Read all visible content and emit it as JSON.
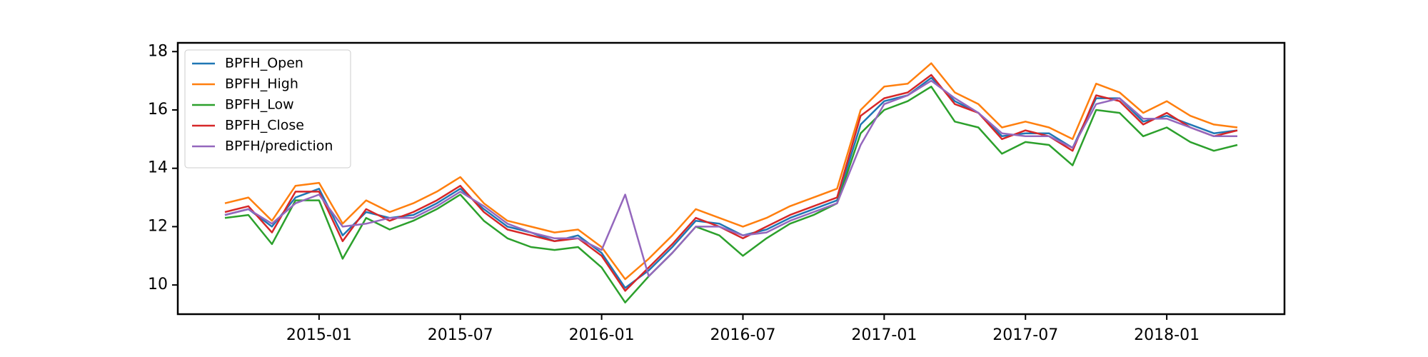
{
  "chart_data": {
    "type": "line",
    "x": [
      "2014-09",
      "2014-10",
      "2014-11",
      "2014-12",
      "2015-01",
      "2015-02",
      "2015-03",
      "2015-04",
      "2015-05",
      "2015-06",
      "2015-07",
      "2015-08",
      "2015-09",
      "2015-10",
      "2015-11",
      "2015-12",
      "2016-01",
      "2016-02",
      "2016-03",
      "2016-04",
      "2016-05",
      "2016-06",
      "2016-07",
      "2016-08",
      "2016-09",
      "2016-10",
      "2016-11",
      "2016-12",
      "2017-01",
      "2017-02",
      "2017-03",
      "2017-04",
      "2017-05",
      "2017-06",
      "2017-07",
      "2017-08",
      "2017-09",
      "2017-10",
      "2017-11",
      "2017-12",
      "2018-01",
      "2018-02",
      "2018-03",
      "2018-04"
    ],
    "series": [
      {
        "name": "BPFH_Open",
        "color": "#1f77b4",
        "values": [
          12.4,
          12.6,
          12.0,
          13.0,
          13.3,
          11.7,
          12.5,
          12.3,
          12.4,
          12.8,
          13.3,
          12.6,
          12.0,
          11.8,
          11.5,
          11.7,
          11.1,
          9.9,
          10.5,
          11.3,
          12.2,
          12.1,
          11.7,
          11.9,
          12.3,
          12.6,
          12.9,
          15.5,
          16.3,
          16.5,
          17.1,
          16.3,
          15.9,
          15.1,
          15.2,
          15.2,
          14.7,
          16.4,
          16.4,
          15.6,
          15.8,
          15.5,
          15.2,
          15.3
        ]
      },
      {
        "name": "BPFH_High",
        "color": "#ff7f0e",
        "values": [
          12.8,
          13.0,
          12.2,
          13.4,
          13.5,
          12.1,
          12.9,
          12.5,
          12.8,
          13.2,
          13.7,
          12.8,
          12.2,
          12.0,
          11.8,
          11.9,
          11.3,
          10.2,
          10.9,
          11.7,
          12.6,
          12.3,
          12.0,
          12.3,
          12.7,
          13.0,
          13.3,
          16.0,
          16.8,
          16.9,
          17.6,
          16.6,
          16.2,
          15.4,
          15.6,
          15.4,
          15.0,
          16.9,
          16.6,
          15.9,
          16.3,
          15.8,
          15.5,
          15.4
        ]
      },
      {
        "name": "BPFH_Low",
        "color": "#2ca02c",
        "values": [
          12.3,
          12.4,
          11.4,
          12.9,
          12.9,
          10.9,
          12.3,
          11.9,
          12.2,
          12.6,
          13.1,
          12.2,
          11.6,
          11.3,
          11.2,
          11.3,
          10.6,
          9.4,
          10.3,
          11.1,
          12.0,
          11.7,
          11.0,
          11.6,
          12.1,
          12.4,
          12.8,
          15.2,
          16.0,
          16.3,
          16.8,
          15.6,
          15.4,
          14.5,
          14.9,
          14.8,
          14.1,
          16.0,
          15.9,
          15.1,
          15.4,
          14.9,
          14.6,
          14.8
        ]
      },
      {
        "name": "BPFH_Close",
        "color": "#d62728",
        "values": [
          12.5,
          12.7,
          11.8,
          13.2,
          13.2,
          11.5,
          12.6,
          12.2,
          12.5,
          12.9,
          13.4,
          12.5,
          11.9,
          11.7,
          11.5,
          11.6,
          11.0,
          9.8,
          10.6,
          11.4,
          12.3,
          12.0,
          11.6,
          12.0,
          12.4,
          12.7,
          13.0,
          15.8,
          16.4,
          16.6,
          17.2,
          16.2,
          15.9,
          15.0,
          15.3,
          15.1,
          14.6,
          16.5,
          16.3,
          15.5,
          15.9,
          15.4,
          15.1,
          15.3
        ]
      },
      {
        "name": "BPFH/prediction",
        "color": "#9467bd",
        "values": [
          12.4,
          12.6,
          12.1,
          12.8,
          13.1,
          12.0,
          12.1,
          12.3,
          12.3,
          12.7,
          13.2,
          12.7,
          12.1,
          11.8,
          11.6,
          11.6,
          11.2,
          13.1,
          10.3,
          11.1,
          12.0,
          12.0,
          11.7,
          11.8,
          12.2,
          12.5,
          12.8,
          14.8,
          16.2,
          16.5,
          17.0,
          16.4,
          15.9,
          15.2,
          15.1,
          15.1,
          14.7,
          16.2,
          16.4,
          15.7,
          15.7,
          15.4,
          15.1,
          15.1
        ]
      }
    ],
    "xlim": [
      "2014-07",
      "2018-06"
    ],
    "xticks": [
      "2015-01",
      "2015-07",
      "2016-01",
      "2016-07",
      "2017-01",
      "2017-07",
      "2018-01"
    ],
    "ylim": [
      9,
      18.3
    ],
    "yticks": [
      10,
      12,
      14,
      16,
      18
    ],
    "legend": "upper left"
  }
}
